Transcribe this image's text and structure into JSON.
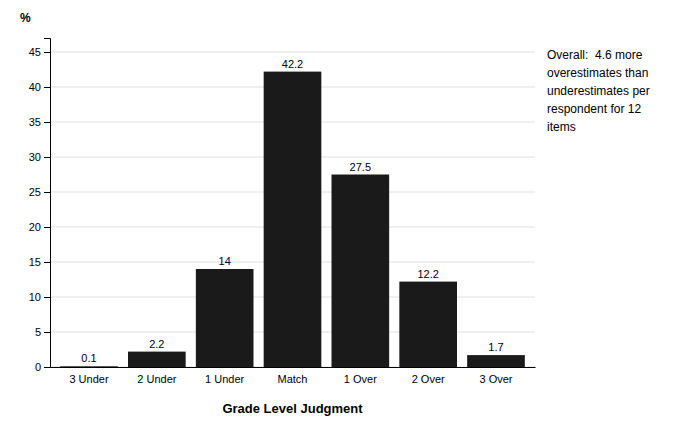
{
  "chart_data": {
    "type": "bar",
    "categories": [
      "3 Under",
      "2 Under",
      "1 Under",
      "Match",
      "1 Over",
      "2 Over",
      "3 Over"
    ],
    "values": [
      0.1,
      2.2,
      14.0,
      42.2,
      27.5,
      12.2,
      1.7
    ],
    "data_labels": true,
    "color": "#1a1a1a",
    "xlabel": "Grade Level Judgment",
    "ylabel": "%",
    "annotations": [
      "Overall:  4.6 more\noverestimates than\nunderestimates per\nrespondent for 12\nitems"
    ],
    "ylim": [
      0,
      47
    ],
    "yticks": [
      0,
      5,
      10,
      15,
      20,
      25,
      30,
      35,
      40,
      45
    ],
    "grid": true
  }
}
